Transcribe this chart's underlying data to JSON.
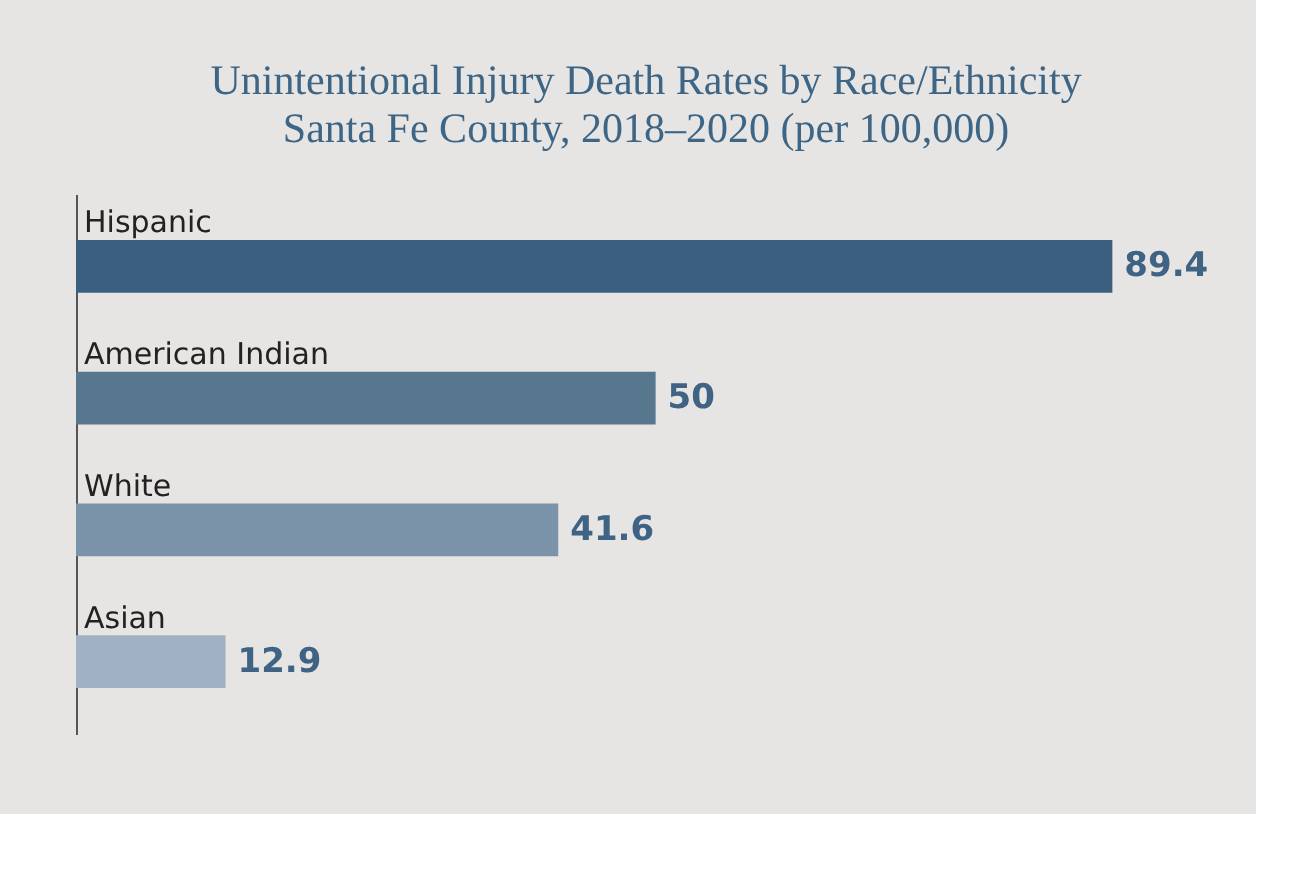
{
  "chart_data": {
    "type": "bar",
    "orientation": "horizontal",
    "title": "Unintentional Injury Death Rates by Race/Ethnicity",
    "subtitle": "Santa Fe County, 2018–2020 (per 100,000)",
    "categories": [
      "Hispanic",
      "American Indian",
      "White",
      "Asian"
    ],
    "values": [
      89.4,
      50,
      41.6,
      12.9
    ],
    "colors": [
      "#3b607f",
      "#57778f",
      "#7b93a8",
      "#9fb1c3"
    ],
    "data_labels": true,
    "grid": false
  }
}
